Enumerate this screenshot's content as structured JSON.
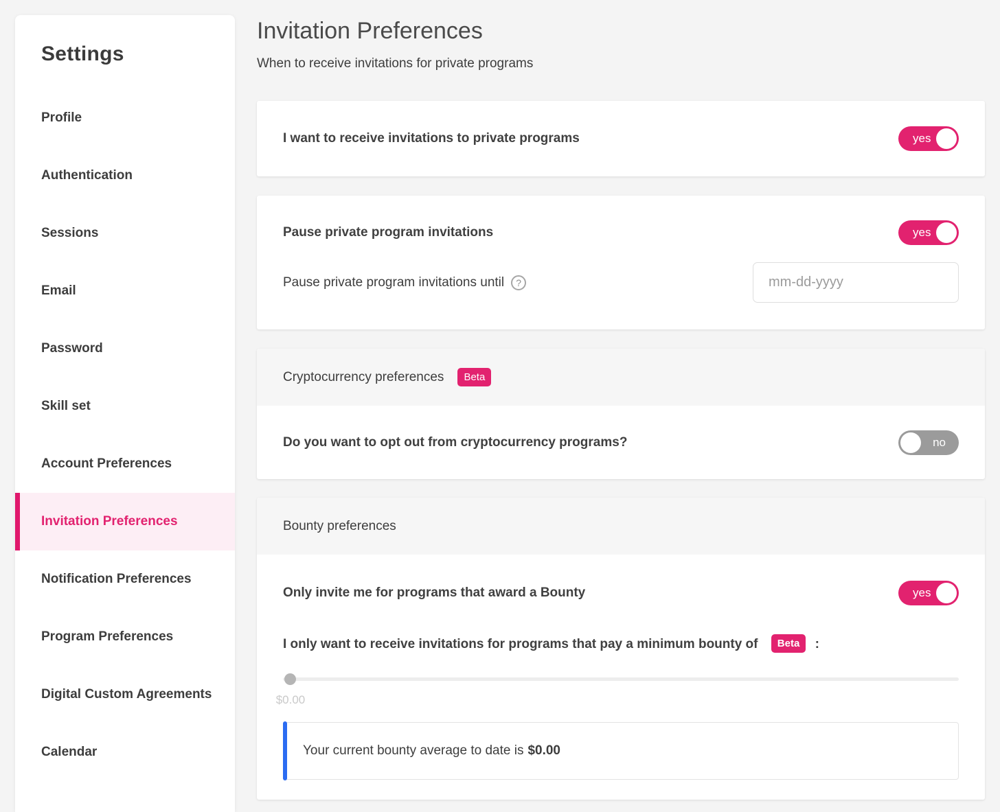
{
  "colors": {
    "accent_pink": "#e2226f",
    "accent_blue": "#2b6cf2",
    "page_background": "#f4f4f4",
    "toggle_off_gray": "#9b9b9b"
  },
  "sidebar": {
    "title": "Settings",
    "items": [
      {
        "label": "Profile",
        "active": false
      },
      {
        "label": "Authentication",
        "active": false
      },
      {
        "label": "Sessions",
        "active": false
      },
      {
        "label": "Email",
        "active": false
      },
      {
        "label": "Password",
        "active": false
      },
      {
        "label": "Skill set",
        "active": false
      },
      {
        "label": "Account Preferences",
        "active": false
      },
      {
        "label": "Invitation Preferences",
        "active": true
      },
      {
        "label": "Notification Preferences",
        "active": false
      },
      {
        "label": "Program Preferences",
        "active": false
      },
      {
        "label": "Digital Custom Agreements",
        "active": false
      },
      {
        "label": "Calendar",
        "active": false
      }
    ]
  },
  "header": {
    "title": "Invitation Preferences",
    "subtitle": "When to receive invitations for private programs"
  },
  "cards": {
    "receive": {
      "label": "I want to receive invitations to private programs",
      "toggle_value": "yes"
    },
    "pause": {
      "label": "Pause private program invitations",
      "toggle_value": "yes",
      "until_label": "Pause private program invitations until",
      "help_icon": "?",
      "date_placeholder": "mm-dd-yyyy"
    },
    "crypto": {
      "header": "Cryptocurrency preferences",
      "beta_badge": "Beta",
      "question": "Do you want to opt out from cryptocurrency programs?",
      "toggle_value": "no"
    },
    "bounty": {
      "header": "Bounty preferences",
      "award_label": "Only invite me for programs that award a Bounty",
      "award_toggle_value": "yes",
      "minimum_label": "I only want to receive invitations for programs that pay a minimum bounty of",
      "beta_badge": "Beta",
      "minimum_colon": ":",
      "slider_value": "$0.00",
      "average_label": "Your current bounty average to date is",
      "average_value": "$0.00"
    }
  }
}
